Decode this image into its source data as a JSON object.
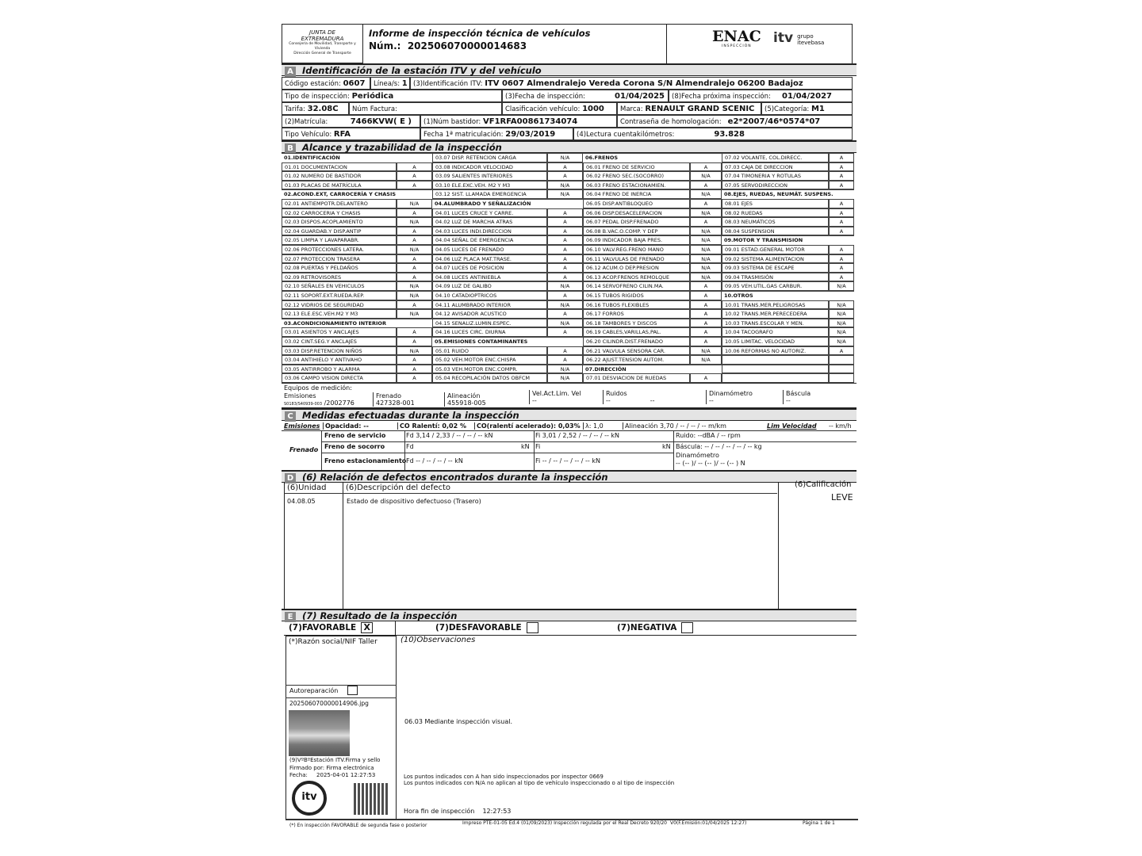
{
  "header": {
    "authority_lines": [
      "JUNTA DE",
      "EXTREMADURA",
      "Consejería de Movilidad, Transporte y Vivienda",
      "Dirección General de Transporte"
    ],
    "title": "Informe de inspección técnica de vehículos",
    "num_label": "Núm.:",
    "num_value": "202506070000014683",
    "enac_logo": "ENAC",
    "enac_sub": "INSPECCIÓN",
    "itv_logo": "itv",
    "itv_group": "grupo itevebasa"
  },
  "sectionA": {
    "letter": "A",
    "title": "Identificación de la estación ITV y del vehículo",
    "codigo_label": "Código estación:",
    "codigo": "0607",
    "linea_label": "Línea/s:",
    "linea": "1",
    "ident_label": "(3)Identificación ITV:",
    "ident": "ITV 0607 Almendralejo Vereda Corona S/N Almendralejo 06200 Badajoz",
    "tipo_insp_label": "Tipo de inspección:",
    "tipo_insp": "Periódica",
    "fecha_insp_label": "(3)Fecha de inspección:",
    "fecha_insp": "01/04/2025",
    "fecha_prox_label": "(8)Fecha próxima inspección:",
    "fecha_prox": "01/04/2027",
    "tarifa_label": "Tarifa:",
    "tarifa": "32.08C",
    "factura_label": "Núm Factura:",
    "clasif_label": "Clasificación vehículo:",
    "clasif": "1000",
    "marca_label": "Marca:",
    "marca": "RENAULT GRAND SCENIC",
    "categoria_label": "(5)Categoría:",
    "categoria": "M1",
    "matricula_label": "(2)Matrícula:",
    "matricula": "7466KVW( E )",
    "bastidor_label": "(1)Núm bastidor:",
    "bastidor": "VF1RFA00861734074",
    "homolog_label": "Contraseña de homologación:",
    "homolog": "e2*2007/46*0574*07",
    "tipo_veh_label": "Tipo Vehículo:",
    "tipo_veh": "RFA",
    "fecha_matric_label": "Fecha 1ª matriculación:",
    "fecha_matric": "29/03/2019",
    "km_label": "(4)Lectura cuentakilómetros:",
    "km": "93.828"
  },
  "sectionB": {
    "letter": "B",
    "title": "Alcance y trazabilidad de la inspección",
    "columns": [
      [
        [
          "01.IDENTIFICACIÓN",
          null
        ],
        [
          "01.01 DOCUMENTACION",
          "A"
        ],
        [
          "01.02 NUMERO DE BASTIDOR",
          "A"
        ],
        [
          "01.03 PLACAS DE MATRÍCULA",
          "A"
        ],
        [
          "02.ACOND.EXT, CARROCERÍA Y CHASIS",
          null
        ],
        [
          "02.01 ANTIEMPOTR.DELANTERO",
          "N/A"
        ],
        [
          "02.02 CARROCERIA Y CHASIS",
          "A"
        ],
        [
          "02.03 DISPOS.ACOPLAMIENTO",
          "N/A"
        ],
        [
          "02.04 GUARDAB.Y DISP.ANTIP",
          "A"
        ],
        [
          "02.05 LIMPIA Y LAVAPARABR.",
          "A"
        ],
        [
          "02.06 PROTECCIONES LATERA.",
          "N/A"
        ],
        [
          "02.07 PROTECCION TRASERA",
          "A"
        ],
        [
          "02.08 PUERTAS Y PELDAÑOS",
          "A"
        ],
        [
          "02.09 RETROVISORES",
          "A"
        ],
        [
          "02.10 SEÑALES EN VEHICULOS",
          "N/A"
        ],
        [
          "02.11 SOPORT.EXT.RUEDA.REP.",
          "N/A"
        ],
        [
          "02.12 VIDRIOS DE SEGURIDAD",
          "A"
        ],
        [
          "02.13 ELE.ESC.VEH.M2 Y M3",
          "N/A"
        ],
        [
          "03.ACONDICIONAMIENTO INTERIOR",
          null
        ],
        [
          "03.01 ASIENTOS Y ANCLAJES",
          "A"
        ],
        [
          "03.02 CINT.SEG.Y ANCLAJES",
          "A"
        ],
        [
          "03.03 DISP.RETENCION NIÑOS",
          "N/A"
        ],
        [
          "03.04 ANTIHIELO Y ANTIVAHO",
          "A"
        ],
        [
          "03.05 ANTIRROBO Y ALARMA",
          "A"
        ],
        [
          "03.06 CAMPO VISION DIRECTA",
          "A"
        ]
      ],
      [
        [
          "03.07 DISP. RETENCION CARGA",
          "N/A"
        ],
        [
          "03.08 INDICADOR VELOCIDAD",
          "A"
        ],
        [
          "03.09 SALIENTES INTERIORES",
          "A"
        ],
        [
          "03.10 ELE.EXC.VEH. M2 Y M3",
          "N/A"
        ],
        [
          "03.12 SIST. LLAMADA EMERGENCIA",
          "N/A"
        ],
        [
          "04.ALUMBRADO Y SEÑALIZACIÓN",
          null
        ],
        [
          "04.01 LUCES CRUCE Y CARRE.",
          "A"
        ],
        [
          "04.02 LUZ DE MARCHA ATRAS",
          "A"
        ],
        [
          "04.03 LUCES INDI.DIRECCION",
          "A"
        ],
        [
          "04.04 SEÑAL DE EMERGENCIA",
          "A"
        ],
        [
          "04.05 LUCES DE FRENADO",
          "A"
        ],
        [
          "04.06 LUZ PLACA MAT.TRASE.",
          "A"
        ],
        [
          "04.07 LUCES DE POSICION",
          "A"
        ],
        [
          "04.08 LUCES ANTINIEBLA",
          "A"
        ],
        [
          "04.09 LUZ DE GALIBO",
          "N/A"
        ],
        [
          "04.10 CATADIOPTRICOS",
          "A"
        ],
        [
          "04.11 ALUMBRADO INTERIOR",
          "N/A"
        ],
        [
          "04.12 AVISADOR ACUSTICO",
          "A"
        ],
        [
          "04.15 SENALIZ.LUMIN.ESPEC.",
          "N/A"
        ],
        [
          "04.16 LUCES CIRC. DIURNA",
          "A"
        ],
        [
          "05.EMISIONES CONTAMINANTES",
          null
        ],
        [
          "05.01 RUIDO",
          "A"
        ],
        [
          "05.02 VEH.MOTOR ENC.CHISPA",
          "A"
        ],
        [
          "05.03 VEH.MOTOR ENC.COMPR.",
          "N/A"
        ],
        [
          "05.04 RECOPILACIÓN DATOS OBFCM",
          "N/A"
        ]
      ],
      [
        [
          "06.FRENOS",
          null
        ],
        [
          "06.01 FRENO DE SERVICIO",
          "A"
        ],
        [
          "06.02 FRENO SEC.(SOCORRO)",
          "N/A"
        ],
        [
          "06.03 FRENO ESTACIONAMIEN.",
          "A"
        ],
        [
          "06.04 FRENO DE INERCIA",
          "N/A"
        ],
        [
          "06.05 DISP.ANTIBLOQUEO",
          "A"
        ],
        [
          "06.06 DISP.DESACELERACION",
          "N/A"
        ],
        [
          "06.07 PEDAL DISP.FRENADO",
          "A"
        ],
        [
          "06.08 B.VAC.O.COMP. Y DEP",
          "N/A"
        ],
        [
          "06.09 INDICADOR BAJA PRES.",
          "N/A"
        ],
        [
          "06.10 VALV.REG.FRENO MANO",
          "N/A"
        ],
        [
          "06.11 VALVULAS DE FRENADO",
          "N/A"
        ],
        [
          "06.12 ACUM.O DEP.PRESION",
          "N/A"
        ],
        [
          "06.13 ACOP.FRENOS REMOLQUE",
          "N/A"
        ],
        [
          "06.14 SERVOFRENO CILIN.MA.",
          "A"
        ],
        [
          "06.15 TUBOS RIGIDOS",
          "A"
        ],
        [
          "06.16 TUBOS FLEXIBLES",
          "A"
        ],
        [
          "06.17 FORROS",
          "A"
        ],
        [
          "06.18 TAMBORES Y DISCOS",
          "A"
        ],
        [
          "06.19 CABLES,VARILLAS,PAL.",
          "A"
        ],
        [
          "06.20 CILINDR.DIST.FRENADO",
          "A"
        ],
        [
          "06.21 VALVULA SENSORA CAR.",
          "N/A"
        ],
        [
          "06.22 AJUST.TENSION AUTOM.",
          "N/A"
        ],
        [
          "07.DIRECCIÓN",
          null
        ],
        [
          "07.01 DESVIACION DE RUEDAS",
          "A"
        ]
      ],
      [
        [
          "07.02 VOLANTE, COL.DIRECC.",
          "A"
        ],
        [
          "07.03 CAJA DE DIRECCION",
          "A"
        ],
        [
          "07.04 TIMONERIA Y ROTULAS",
          "A"
        ],
        [
          "07.05 SERVODIRECCION",
          "A"
        ],
        [
          "08.EJES, RUEDAS, NEUMÁT. SUSPENS.",
          null
        ],
        [
          "08.01 EJES",
          "A"
        ],
        [
          "08.02 RUEDAS",
          "A"
        ],
        [
          "08.03 NEUMÁTICOS",
          "A"
        ],
        [
          "08.04 SUSPENSION",
          "A"
        ],
        [
          "09.MOTOR Y TRANSMISION",
          null
        ],
        [
          "09.01 ESTAD.GENERAL MOTOR",
          "A"
        ],
        [
          "09.02 SISTEMA ALIMENTACION",
          "A"
        ],
        [
          "09.03 SISTEMA DE ESCAPE",
          "A"
        ],
        [
          "09.04 TRASMISIÓN",
          "A"
        ],
        [
          "09.05 VEH.UTIL.GAS CARBUR.",
          "N/A"
        ],
        [
          "10.OTROS",
          null
        ],
        [
          "10.01 TRANS.MER.PELIGROSAS",
          "N/A"
        ],
        [
          "10.02 TRANS.MER.PERECEDERA",
          "N/A"
        ],
        [
          "10.03 TRANS.ESCOLAR Y MEN.",
          "N/A"
        ],
        [
          "10.04 TACOGRAFO",
          "N/A"
        ],
        [
          "10.05 LIMITAC. VELOCIDAD",
          "N/A"
        ],
        [
          "10.06 REFORMAS NO AUTORIZ.",
          "A"
        ],
        [
          "",
          ""
        ],
        [
          "",
          ""
        ],
        [
          "",
          ""
        ]
      ]
    ],
    "equipos_label": "Equipos de medición:",
    "equipos": [
      {
        "label": "Emisiones",
        "value": "/2002776",
        "sub": "S0183/S40939-003"
      },
      {
        "label": "Frenado",
        "value": "427328-001"
      },
      {
        "label": "Alineación",
        "value": "455918-005"
      },
      {
        "label": "Vel.Act.Lim. Vel",
        "value": "--"
      },
      {
        "label": "Ruidos",
        "value": "--",
        "value2": "--"
      },
      {
        "label": "Dinamómetro",
        "value": "--"
      },
      {
        "label": "Báscula",
        "value": "--"
      }
    ]
  },
  "sectionC": {
    "letter": "C",
    "title": "Medidas efectuadas durante la inspección",
    "emisiones_label": "Emisiones",
    "opacidad": "Opacidad:          --",
    "co_ralenti": "CO Ralentí:        0,02 %",
    "co_acel": "CO(ralentí acelerado):  0,03%",
    "lambda": "λ:        1,0",
    "alineacion": "Alineación  3,70  /  --  /  --  / -- m/km",
    "lim_vel_label": "Lim Velocidad",
    "lim_vel": "-- km/h",
    "frenado_label": "Frenado",
    "servicio_label": "Freno de servicio",
    "servicio_fd": "Fd  3,14 / 2,33 /  --  /  --  /  --  kN",
    "servicio_fi": "Fi  3,01 / 2,52 /  --  /  --  /  --  kN",
    "ruido": "Ruido:                --dBA / --    rpm",
    "socorro_label": "Freno de socorro",
    "socorro_fd": "Fd",
    "socorro_fd_unit": "kN",
    "socorro_fi": "Fi",
    "socorro_fi_unit": "kN",
    "bascula": "Báscula:  --   /   --   /   --   /   --   /  -- kg",
    "estac_label": "Freno estacionamiento",
    "estac_fd": "Fd  --  /  --  /  --  /  --  kN",
    "estac_fi": "Fi  --  /  --  /  --  /  --  /  --  kN",
    "dinamometro_label": "Dinamómetro",
    "dinamometro": "--     (--      )/ --     (--      )/ --     (--      ) N"
  },
  "sectionD": {
    "letter": "D",
    "title": "(6) Relación de defectos encontrados durante la inspección",
    "col_unidad": "(6)Unidad",
    "col_desc": "(6)Descripción del defecto",
    "col_calif": "(6)Calificación",
    "defects": [
      {
        "unidad": "04.08.05",
        "desc": "Estado de dispositivo defectuoso (Trasero)",
        "calif": "LEVE"
      }
    ]
  },
  "sectionE": {
    "letter": "E",
    "title": "(7) Resultado de la inspección",
    "favorable": "(7)FAVORABLE",
    "favorable_mark": "X",
    "desfavorable": "(7)DESFAVORABLE",
    "negativa": "(7)NEGATIVA",
    "razon_social": "(*)Razón social/NIF Taller",
    "observaciones_label": "(10)Observaciones",
    "autoreparacion": "Autoreparación",
    "photo_file": "202506070000014906.jpg",
    "firma_label": "(9)VºBºEstación ITV.Firma y sello",
    "firmado": "Firmado por: Firma electrónica",
    "fecha_label": "Fecha:",
    "fecha": "2025-04-01 12:27:53",
    "observacion": "06.03 Mediante inspección visual.",
    "nota_a": "Los puntos indicados con A han sido inspeccionados por inspector 0669",
    "nota_na": "Los puntos indicados con N/A no aplican al tipo de vehículo inspeccionado o al tipo de inspección",
    "hora_fin_label": "Hora fin de inspección",
    "hora_fin": "12:27:53",
    "seal_text": "itv",
    "seal_ring": "ITEVEBASA"
  },
  "footer": {
    "note": "(*) En inspección FAVORABLE de segunda fase o posterior",
    "impreso": "Impreso PTE-01-05 Ed.4 (01/09/2023) Inspección regulada por el Real Decreto 920/20",
    "version": "V0(F.Emisión:01/04/2025 12:27)",
    "pagina": "Página    1   de     1"
  }
}
